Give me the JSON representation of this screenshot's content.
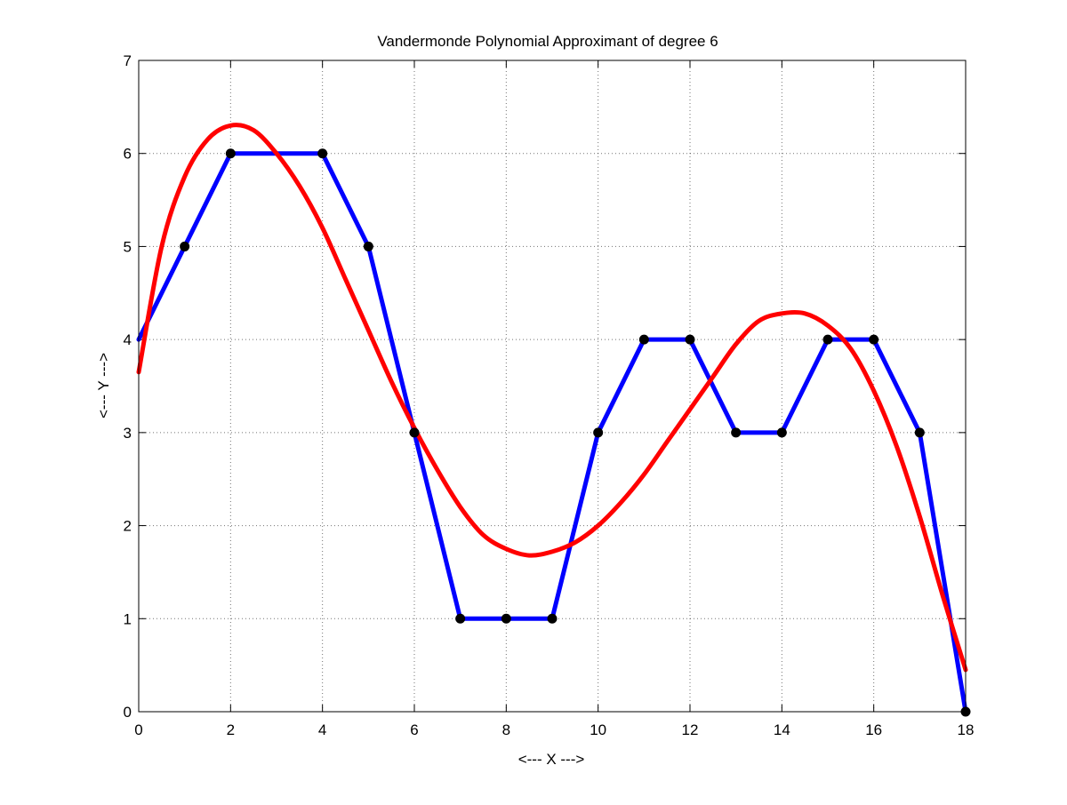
{
  "chart_data": {
    "type": "line",
    "title": "Vandermonde Polynomial Approximant of degree 6",
    "xlabel": "<--- X --->",
    "ylabel": "<--- Y --->",
    "xlim": [
      0,
      18
    ],
    "ylim": [
      0,
      7
    ],
    "xticks": [
      0,
      2,
      4,
      6,
      8,
      10,
      12,
      14,
      16,
      18
    ],
    "yticks": [
      0,
      1,
      2,
      3,
      4,
      5,
      6,
      7
    ],
    "xtick_labels": [
      "0",
      "2",
      "4",
      "6",
      "8",
      "10",
      "12",
      "14",
      "16",
      "18"
    ],
    "ytick_labels": [
      "0",
      "1",
      "2",
      "3",
      "4",
      "5",
      "6",
      "7"
    ],
    "grid": true,
    "series": [
      {
        "style": "line-with-markers",
        "color": "#0000ff",
        "marker_color": "#000000",
        "x": [
          0,
          1,
          2,
          3,
          4,
          5,
          6,
          7,
          8,
          9,
          10,
          11,
          12,
          13,
          14,
          15,
          16,
          17,
          18
        ],
        "y": [
          4,
          5,
          6,
          6,
          6,
          5,
          3,
          1,
          1,
          1,
          3,
          4,
          4,
          3,
          3,
          4,
          4,
          3,
          0
        ],
        "markers_at": [
          1,
          2,
          4,
          5,
          6,
          7,
          8,
          9,
          10,
          11,
          12,
          13,
          14,
          15,
          16,
          17,
          18
        ]
      },
      {
        "style": "curve",
        "color": "#ff0000",
        "x": [
          0,
          0.5,
          1,
          1.5,
          2,
          2.5,
          3,
          3.5,
          4,
          4.5,
          5,
          5.5,
          6,
          6.5,
          7,
          7.5,
          8,
          8.5,
          9,
          9.5,
          10,
          10.5,
          11,
          11.5,
          12,
          12.5,
          13,
          13.5,
          14,
          14.5,
          15,
          15.5,
          16,
          16.5,
          17,
          17.5,
          18
        ],
        "y": [
          3.65,
          5.0,
          5.75,
          6.15,
          6.3,
          6.25,
          6.0,
          5.65,
          5.2,
          4.65,
          4.1,
          3.55,
          3.05,
          2.6,
          2.2,
          1.9,
          1.75,
          1.68,
          1.72,
          1.82,
          2.0,
          2.25,
          2.55,
          2.9,
          3.25,
          3.6,
          3.95,
          4.2,
          4.28,
          4.28,
          4.15,
          3.9,
          3.45,
          2.85,
          2.1,
          1.25,
          0.45
        ]
      }
    ]
  }
}
